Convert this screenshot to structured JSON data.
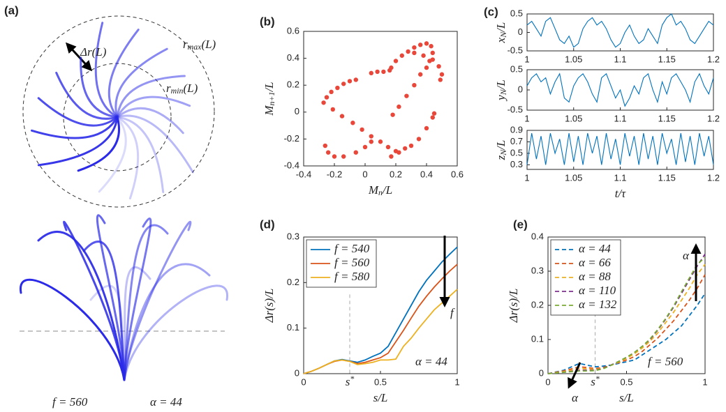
{
  "panel_a": {
    "label": "(a)",
    "delta_r": "Δr(L)",
    "r_max": [
      "r",
      {
        "sub": "max"
      },
      "(L)"
    ],
    "r_min": [
      "r",
      {
        "sub": "min"
      },
      "(L)"
    ],
    "params": [
      "f = 560",
      "α = 44"
    ]
  },
  "chart_data": [
    {
      "type": "scatter",
      "panel_label": "(b)",
      "xlabel": [
        "M",
        {
          "sub": "n"
        },
        "/L"
      ],
      "ylabel": [
        "M",
        {
          "sub": "n+1"
        },
        "/L"
      ],
      "color": "#e8473a",
      "xlim": [
        -0.4,
        0.6
      ],
      "xticks": [
        -0.4,
        -0.2,
        0,
        0.2,
        0.4,
        0.6
      ],
      "ylim": [
        -0.4,
        0.6
      ],
      "yticks": [
        -0.4,
        -0.2,
        0,
        0.2,
        0.4,
        0.6
      ],
      "x": [
        -0.27,
        -0.25,
        -0.22,
        -0.18,
        -0.14,
        -0.1,
        -0.06,
        0.04,
        0.08,
        0.12,
        0.16,
        0.17,
        0.2,
        0.24,
        0.28,
        0.32,
        0.36,
        0.4,
        0.43,
        0.44,
        0.42,
        0.4,
        0.32,
        0.38,
        0.44,
        0.48,
        0.5,
        0.49,
        0.36,
        0.32,
        0.27,
        0.22,
        0.18,
        -0.21,
        -0.15,
        -0.08,
        -0.02,
        0.04,
        0.1,
        0.15,
        0.2,
        -0.26,
        -0.24,
        -0.2,
        -0.14,
        -0.06,
        0.0,
        0.04,
        0.17,
        0.22,
        0.26,
        0.3,
        0.35,
        0.4,
        0.44,
        0.45
      ],
      "y": [
        0.07,
        0.11,
        0.15,
        0.18,
        0.21,
        0.23,
        0.24,
        0.29,
        0.3,
        0.3,
        0.31,
        0.33,
        0.38,
        0.42,
        0.45,
        0.48,
        0.5,
        0.51,
        0.49,
        0.44,
        0.38,
        0.33,
        0.44,
        0.42,
        0.39,
        0.34,
        0.28,
        0.24,
        0.28,
        0.2,
        0.12,
        0.04,
        -0.02,
        0.02,
        -0.03,
        -0.08,
        -0.13,
        -0.18,
        -0.22,
        -0.26,
        -0.29,
        -0.25,
        -0.3,
        -0.33,
        -0.33,
        -0.3,
        -0.26,
        -0.22,
        -0.33,
        -0.3,
        -0.27,
        -0.25,
        -0.2,
        -0.12,
        -0.04,
        -0.01
      ]
    },
    {
      "type": "line",
      "panel_label": "(c)",
      "ylabel": [
        "x",
        {
          "sub": "N"
        },
        "/L"
      ],
      "x": [
        1,
        1.005,
        1.01,
        1.015,
        1.02,
        1.025,
        1.03,
        1.035,
        1.04,
        1.045,
        1.05,
        1.055,
        1.06,
        1.065,
        1.07,
        1.075,
        1.08,
        1.085,
        1.09,
        1.095,
        1.1,
        1.105,
        1.11,
        1.115,
        1.12,
        1.125,
        1.13,
        1.135,
        1.14,
        1.145,
        1.15,
        1.155,
        1.16,
        1.165,
        1.17,
        1.175,
        1.18,
        1.185,
        1.19,
        1.195,
        1.2
      ],
      "xlim": [
        1,
        1.2
      ],
      "xticks": [
        1,
        1.05,
        1.1,
        1.15,
        1.2
      ],
      "ylim": [
        -0.5,
        0.5
      ],
      "yticks": [
        -0.5,
        0,
        0.5
      ],
      "series": [
        {
          "color": "#0072bd",
          "values": [
            0.2,
            0.3,
            0.1,
            -0.1,
            0.3,
            0.4,
            0.1,
            -0.2,
            -0.3,
            -0.1,
            -0.4,
            -0.3,
            0.1,
            0.3,
            0.4,
            0.2,
            0.3,
            0.1,
            -0.2,
            -0.4,
            -0.3,
            0,
            0.2,
            -0.1,
            -0.3,
            -0.2,
            0.1,
            -0.1,
            -0.3,
            0.2,
            0.4,
            0.5,
            0.2,
            0.3,
            0.1,
            -0.2,
            -0.3,
            -0.1,
            0.1,
            0.3,
            0.2
          ]
        }
      ]
    },
    {
      "type": "line",
      "ylabel": [
        "y",
        {
          "sub": "N"
        },
        "/L"
      ],
      "x": [
        1,
        1.005,
        1.01,
        1.015,
        1.02,
        1.025,
        1.03,
        1.035,
        1.04,
        1.045,
        1.05,
        1.055,
        1.06,
        1.065,
        1.07,
        1.075,
        1.08,
        1.085,
        1.09,
        1.095,
        1.1,
        1.105,
        1.11,
        1.115,
        1.12,
        1.125,
        1.13,
        1.135,
        1.14,
        1.145,
        1.15,
        1.155,
        1.16,
        1.165,
        1.17,
        1.175,
        1.18,
        1.185,
        1.19,
        1.195,
        1.2
      ],
      "xlim": [
        1,
        1.2
      ],
      "xticks": [
        1,
        1.05,
        1.1,
        1.15,
        1.2
      ],
      "ylim": [
        -0.5,
        0.5
      ],
      "yticks": [
        -0.5,
        0,
        0.5
      ],
      "series": [
        {
          "color": "#0072bd",
          "values": [
            0.1,
            0.3,
            0.4,
            0.2,
            0.3,
            -0.1,
            0.2,
            0.4,
            -0.2,
            -0.3,
            0.1,
            0.3,
            0.4,
            0.2,
            -0.1,
            -0.3,
            0.3,
            0.4,
            0.1,
            -0.2,
            0,
            -0.4,
            -0.2,
            0.1,
            -0.1,
            0.3,
            0.4,
            0,
            -0.3,
            0.2,
            -0.1,
            0.3,
            0.4,
            0.2,
            0,
            -0.3,
            0.2,
            0.4,
            0.1,
            -0.1,
            0.3
          ]
        }
      ]
    },
    {
      "type": "line",
      "ylabel": [
        "z",
        {
          "sub": "N"
        },
        "/L"
      ],
      "xlabel": "t/τ",
      "x": [
        1,
        1.005,
        1.01,
        1.015,
        1.02,
        1.025,
        1.03,
        1.035,
        1.04,
        1.045,
        1.05,
        1.055,
        1.06,
        1.065,
        1.07,
        1.075,
        1.08,
        1.085,
        1.09,
        1.095,
        1.1,
        1.105,
        1.11,
        1.115,
        1.12,
        1.125,
        1.13,
        1.135,
        1.14,
        1.145,
        1.15,
        1.155,
        1.16,
        1.165,
        1.17,
        1.175,
        1.18,
        1.185,
        1.19,
        1.195,
        1.2
      ],
      "xlim": [
        1,
        1.2
      ],
      "xticks": [
        1,
        1.05,
        1.1,
        1.15,
        1.2
      ],
      "ylim": [
        0.22,
        0.9
      ],
      "yticks": [
        0.3,
        0.5,
        0.7,
        0.9
      ],
      "series": [
        {
          "color": "#0072bd",
          "values": [
            0.3,
            0.85,
            0.4,
            0.8,
            0.3,
            0.85,
            0.5,
            0.75,
            0.3,
            0.85,
            0.35,
            0.8,
            0.3,
            0.85,
            0.5,
            0.8,
            0.3,
            0.85,
            0.4,
            0.75,
            0.3,
            0.85,
            0.45,
            0.8,
            0.3,
            0.85,
            0.4,
            0.8,
            0.3,
            0.85,
            0.5,
            0.75,
            0.3,
            0.85,
            0.35,
            0.8,
            0.3,
            0.85,
            0.45,
            0.8,
            0.3
          ]
        }
      ]
    },
    {
      "type": "line",
      "panel_label": "(d)",
      "xlabel": "s/L",
      "ylabel": "Δr(s)/L",
      "legend": "upper left",
      "vline": 0.3,
      "annotations": [
        "α = 44",
        "f"
      ],
      "x": [
        0,
        0.05,
        0.1,
        0.15,
        0.2,
        0.25,
        0.3,
        0.35,
        0.4,
        0.45,
        0.5,
        0.55,
        0.6,
        0.65,
        0.7,
        0.75,
        0.8,
        0.85,
        0.9,
        0.95,
        1
      ],
      "xlim": [
        0,
        1
      ],
      "xticks": [
        0,
        {
          "value": 0.3,
          "label": [
            "s",
            {
              "sup": "*"
            }
          ]
        },
        0.5,
        1
      ],
      "ylim": [
        0,
        0.3
      ],
      "yticks": [
        0,
        0.1,
        0.2,
        0.3
      ],
      "series": [
        {
          "name": "f = 540",
          "color": "#0072bd",
          "values": [
            0,
            0.005,
            0.012,
            0.02,
            0.028,
            0.031,
            0.028,
            0.025,
            0.03,
            0.038,
            0.045,
            0.06,
            0.09,
            0.12,
            0.15,
            0.18,
            0.205,
            0.225,
            0.245,
            0.262,
            0.278
          ]
        },
        {
          "name": "f = 560",
          "color": "#d95319",
          "values": [
            0,
            0.005,
            0.012,
            0.02,
            0.027,
            0.03,
            0.027,
            0.022,
            0.025,
            0.03,
            0.035,
            0.045,
            0.07,
            0.095,
            0.122,
            0.148,
            0.17,
            0.19,
            0.208,
            0.225,
            0.24
          ]
        },
        {
          "name": "f = 580",
          "color": "#edb120",
          "values": [
            0,
            0.005,
            0.012,
            0.02,
            0.028,
            0.03,
            0.027,
            0.02,
            0.022,
            0.025,
            0.03,
            0.03,
            0.032,
            0.06,
            0.078,
            0.1,
            0.12,
            0.14,
            0.155,
            0.17,
            0.185
          ]
        }
      ]
    },
    {
      "type": "line",
      "panel_label": "(e)",
      "xlabel": "s/L",
      "ylabel": "Δr(s)/L",
      "legend": "upper left",
      "dashed": true,
      "vline": 0.3,
      "annotations": [
        "f = 560",
        "α",
        "α"
      ],
      "x": [
        0,
        0.05,
        0.1,
        0.15,
        0.2,
        0.25,
        0.3,
        0.35,
        0.4,
        0.45,
        0.5,
        0.55,
        0.6,
        0.65,
        0.7,
        0.75,
        0.8,
        0.85,
        0.9,
        0.95,
        1
      ],
      "xlim": [
        0,
        1
      ],
      "xticks": [
        0,
        {
          "value": 0.3,
          "label": [
            "s",
            {
              "sup": "*"
            }
          ]
        },
        0.5,
        1
      ],
      "ylim": [
        0,
        0.4
      ],
      "yticks": [
        0,
        0.1,
        0.2,
        0.3,
        0.4
      ],
      "series": [
        {
          "name": "α = 44",
          "color": "#0072bd",
          "values": [
            0,
            0.005,
            0.01,
            0.02,
            0.03,
            0.025,
            0.02,
            0.022,
            0.025,
            0.03,
            0.035,
            0.04,
            0.055,
            0.07,
            0.085,
            0.1,
            0.12,
            0.14,
            0.17,
            0.2,
            0.235
          ]
        },
        {
          "name": "α = 66",
          "color": "#d95319",
          "values": [
            0,
            0.004,
            0.008,
            0.014,
            0.02,
            0.018,
            0.015,
            0.018,
            0.025,
            0.032,
            0.04,
            0.05,
            0.065,
            0.085,
            0.105,
            0.13,
            0.155,
            0.185,
            0.215,
            0.25,
            0.29
          ]
        },
        {
          "name": "α = 88",
          "color": "#edb120",
          "values": [
            0,
            0.003,
            0.006,
            0.01,
            0.015,
            0.014,
            0.012,
            0.016,
            0.024,
            0.034,
            0.045,
            0.058,
            0.075,
            0.095,
            0.12,
            0.15,
            0.18,
            0.215,
            0.25,
            0.29,
            0.32
          ]
        },
        {
          "name": "α = 110",
          "color": "#7e2f8e",
          "values": [
            0,
            0.002,
            0.004,
            0.007,
            0.01,
            0.01,
            0.01,
            0.015,
            0.025,
            0.036,
            0.048,
            0.062,
            0.08,
            0.1,
            0.128,
            0.16,
            0.195,
            0.235,
            0.275,
            0.315,
            0.35
          ]
        },
        {
          "name": "α = 132",
          "color": "#77ac30",
          "values": [
            0,
            0.002,
            0.004,
            0.006,
            0.008,
            0.008,
            0.009,
            0.014,
            0.024,
            0.036,
            0.048,
            0.062,
            0.08,
            0.102,
            0.13,
            0.162,
            0.198,
            0.24,
            0.28,
            0.32,
            0.34
          ]
        }
      ]
    }
  ]
}
